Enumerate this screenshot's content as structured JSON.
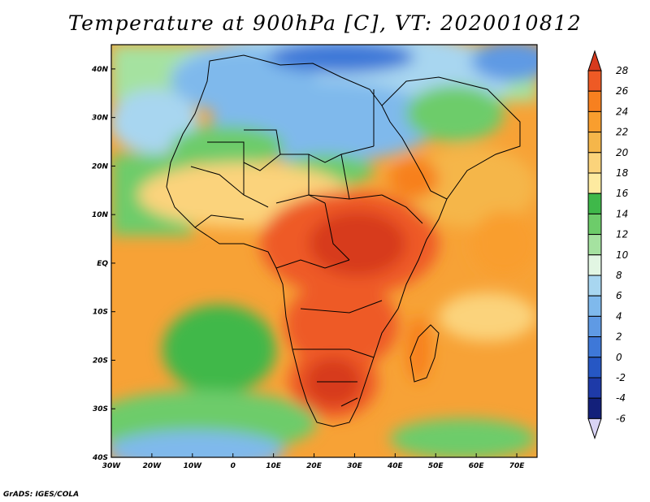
{
  "title": "Temperature at 900hPa [C], VT: 2020010812",
  "credit": "GrADS: IGES/COLA",
  "axes": {
    "lat_ticks": [
      {
        "value": 40,
        "label": "40N"
      },
      {
        "value": 30,
        "label": "30N"
      },
      {
        "value": 20,
        "label": "20N"
      },
      {
        "value": 10,
        "label": "10N"
      },
      {
        "value": 0,
        "label": "EQ"
      },
      {
        "value": -10,
        "label": "10S"
      },
      {
        "value": -20,
        "label": "20S"
      },
      {
        "value": -30,
        "label": "30S"
      },
      {
        "value": -40,
        "label": "40S"
      }
    ],
    "lon_ticks": [
      {
        "value": -30,
        "label": "30W"
      },
      {
        "value": -20,
        "label": "20W"
      },
      {
        "value": -10,
        "label": "10W"
      },
      {
        "value": 0,
        "label": "0"
      },
      {
        "value": 10,
        "label": "10E"
      },
      {
        "value": 20,
        "label": "20E"
      },
      {
        "value": 30,
        "label": "30E"
      },
      {
        "value": 40,
        "label": "40E"
      },
      {
        "value": 50,
        "label": "50E"
      },
      {
        "value": 60,
        "label": "60E"
      },
      {
        "value": 70,
        "label": "70E"
      }
    ],
    "lon_range": [
      -30,
      75
    ],
    "lat_range": [
      -40,
      45
    ]
  },
  "colorbar": {
    "levels": [
      "28",
      "26",
      "24",
      "22",
      "20",
      "18",
      "16",
      "14",
      "12",
      "10",
      "8",
      "6",
      "4",
      "2",
      "0",
      "-2",
      "-4",
      "-6"
    ],
    "colors": [
      "#d73a1e",
      "#ee5a25",
      "#f7801f",
      "#f99e2e",
      "#f5b64a",
      "#fbd37b",
      "#fdeaa0",
      "#3fb84a",
      "#6dcc6a",
      "#a5e2a0",
      "#e2f6e3",
      "#a8d6f0",
      "#7fb9ec",
      "#5f9ae4",
      "#3e78d8",
      "#2657c4",
      "#1e3aa8",
      "#13207a",
      "#d9d4f5"
    ]
  }
}
